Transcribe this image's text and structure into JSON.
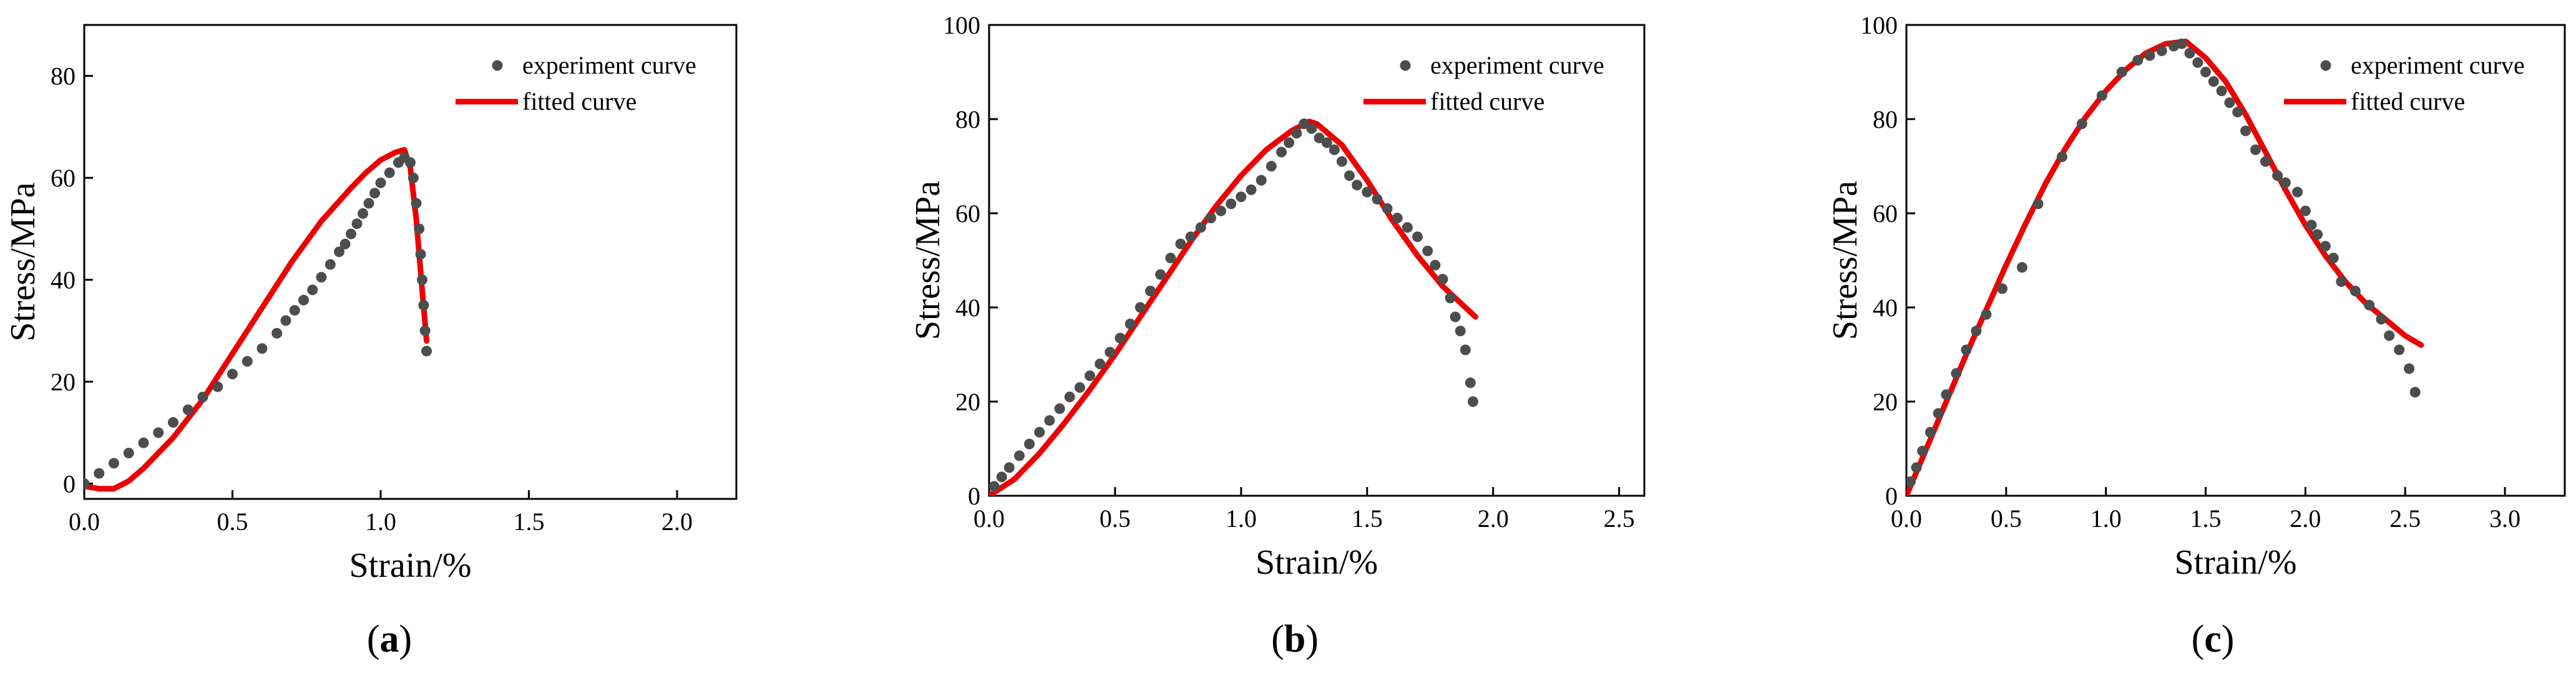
{
  "colors": {
    "experiment": "#4d4d4d",
    "fitted": "#ee0000",
    "axis": "#000000"
  },
  "chart_data": [
    {
      "type": "scatter",
      "panel_label": "a",
      "xlabel": "Strain/%",
      "ylabel": "Stress/MPa",
      "xlim": [
        0,
        2.2
      ],
      "ylim": [
        -3,
        90
      ],
      "xticks": [
        0.0,
        0.5,
        1.0,
        1.5,
        2.0
      ],
      "yticks": [
        0,
        20,
        40,
        60,
        80
      ],
      "xtick_labels": [
        "0.0",
        "0.5",
        "1.0",
        "1.5",
        "2.0"
      ],
      "ytick_labels": [
        "0",
        "20",
        "40",
        "60",
        "80"
      ],
      "legend": {
        "position": "top-right",
        "entries": [
          "experiment curve",
          "fitted curve"
        ]
      },
      "series": [
        {
          "name": "experiment curve",
          "kind": "points",
          "x": [
            0.0,
            0.05,
            0.1,
            0.15,
            0.2,
            0.25,
            0.3,
            0.35,
            0.4,
            0.45,
            0.5,
            0.55,
            0.6,
            0.65,
            0.68,
            0.71,
            0.74,
            0.77,
            0.8,
            0.83,
            0.86,
            0.88,
            0.9,
            0.92,
            0.94,
            0.96,
            0.98,
            1.0,
            1.03,
            1.06,
            1.08,
            1.1,
            1.11,
            1.12,
            1.13,
            1.135,
            1.14,
            1.145,
            1.15,
            1.155
          ],
          "y": [
            0,
            2,
            4,
            6,
            8,
            10,
            12,
            14.5,
            17,
            19,
            21.5,
            24,
            26.5,
            29.5,
            32,
            34,
            36,
            38,
            40.5,
            43,
            45.5,
            47,
            49,
            51,
            53,
            55,
            57,
            59,
            61,
            63,
            64,
            63,
            60,
            55,
            50,
            45,
            40,
            35,
            30,
            26
          ]
        },
        {
          "name": "fitted curve",
          "kind": "line",
          "x": [
            0.0,
            0.05,
            0.1,
            0.15,
            0.2,
            0.3,
            0.4,
            0.5,
            0.6,
            0.7,
            0.8,
            0.9,
            0.95,
            1.0,
            1.05,
            1.08,
            1.1,
            1.12,
            1.14,
            1.155
          ],
          "y": [
            -0.5,
            -1,
            -1,
            0.5,
            3,
            9,
            16.5,
            25.5,
            34.5,
            43.5,
            51.5,
            58,
            61,
            63.5,
            65,
            65.5,
            62,
            52,
            38,
            28
          ]
        }
      ]
    },
    {
      "type": "scatter",
      "panel_label": "b",
      "xlabel": "Strain/%",
      "ylabel": "Stress/MPa",
      "xlim": [
        0,
        2.6
      ],
      "ylim": [
        0,
        100
      ],
      "xticks": [
        0.0,
        0.5,
        1.0,
        1.5,
        2.0,
        2.5
      ],
      "yticks": [
        0,
        20,
        40,
        60,
        80,
        100
      ],
      "xtick_labels": [
        "0.0",
        "0.5",
        "1.0",
        "1.5",
        "2.0",
        "2.5"
      ],
      "ytick_labels": [
        "0",
        "20",
        "40",
        "60",
        "80",
        "100"
      ],
      "legend": {
        "position": "top-right",
        "entries": [
          "experiment curve",
          "fitted curve"
        ]
      },
      "series": [
        {
          "name": "experiment curve",
          "kind": "points",
          "x": [
            0.02,
            0.05,
            0.08,
            0.12,
            0.16,
            0.2,
            0.24,
            0.28,
            0.32,
            0.36,
            0.4,
            0.44,
            0.48,
            0.52,
            0.56,
            0.6,
            0.64,
            0.68,
            0.72,
            0.76,
            0.8,
            0.84,
            0.88,
            0.92,
            0.96,
            1.0,
            1.04,
            1.08,
            1.12,
            1.16,
            1.19,
            1.22,
            1.25,
            1.28,
            1.31,
            1.34,
            1.37,
            1.4,
            1.43,
            1.46,
            1.5,
            1.54,
            1.58,
            1.62,
            1.66,
            1.7,
            1.74,
            1.77,
            1.8,
            1.83,
            1.85,
            1.87,
            1.89,
            1.91,
            1.92
          ],
          "y": [
            2,
            4,
            6,
            8.5,
            11,
            13.5,
            16,
            18.5,
            21,
            23,
            25.5,
            28,
            30.5,
            33.5,
            36.5,
            40,
            43.5,
            47,
            50.5,
            53.5,
            55,
            57,
            59,
            60.5,
            62,
            63.5,
            65,
            67,
            70,
            73,
            75,
            77,
            79,
            78,
            76,
            75,
            73.5,
            71,
            68,
            66,
            64.5,
            63,
            61,
            59,
            57,
            55,
            52,
            49,
            46,
            42,
            38,
            35,
            31,
            24,
            20
          ]
        },
        {
          "name": "fitted curve",
          "kind": "line",
          "x": [
            0.0,
            0.1,
            0.2,
            0.3,
            0.4,
            0.5,
            0.6,
            0.7,
            0.8,
            0.9,
            1.0,
            1.1,
            1.2,
            1.27,
            1.3,
            1.4,
            1.5,
            1.6,
            1.7,
            1.8,
            1.93
          ],
          "y": [
            0,
            3.5,
            9,
            15.5,
            22.5,
            30,
            38,
            46,
            54,
            61.5,
            68,
            73.5,
            77.5,
            79.5,
            79,
            74.5,
            67,
            58.5,
            51,
            44.5,
            38
          ]
        }
      ]
    },
    {
      "type": "scatter",
      "panel_label": "c",
      "xlabel": "Strain/%",
      "ylabel": "Stress/MPa",
      "xlim": [
        0,
        3.3
      ],
      "ylim": [
        0,
        100
      ],
      "xticks": [
        0.0,
        0.5,
        1.0,
        1.5,
        2.0,
        2.5,
        3.0
      ],
      "yticks": [
        0,
        20,
        40,
        60,
        80,
        100
      ],
      "xtick_labels": [
        "0.0",
        "0.5",
        "1.0",
        "1.5",
        "2.0",
        "2.5",
        "3.0"
      ],
      "ytick_labels": [
        "0",
        "20",
        "40",
        "60",
        "80",
        "100"
      ],
      "legend": {
        "position": "top-right",
        "entries": [
          "experiment curve",
          "fitted curve"
        ]
      },
      "series": [
        {
          "name": "experiment curve",
          "kind": "points",
          "x": [
            0.02,
            0.05,
            0.08,
            0.12,
            0.16,
            0.2,
            0.25,
            0.3,
            0.35,
            0.4,
            0.48,
            0.58,
            0.66,
            0.78,
            0.88,
            0.98,
            1.08,
            1.16,
            1.22,
            1.28,
            1.34,
            1.38,
            1.42,
            1.46,
            1.5,
            1.54,
            1.58,
            1.62,
            1.66,
            1.7,
            1.75,
            1.8,
            1.86,
            1.9,
            1.96,
            2.0,
            2.03,
            2.06,
            2.1,
            2.14,
            2.18,
            2.25,
            2.32,
            2.38,
            2.42,
            2.47,
            2.52,
            2.55
          ],
          "y": [
            3,
            6,
            9.5,
            13.5,
            17.5,
            21.5,
            26,
            31,
            35,
            38.5,
            44,
            48.5,
            62,
            72,
            79,
            85,
            90,
            92.5,
            93.5,
            94.5,
            95.5,
            96,
            94,
            92,
            90,
            88,
            86,
            83.5,
            81.5,
            77.5,
            73.5,
            71,
            68,
            66.5,
            64.5,
            60.5,
            57.5,
            55.5,
            53,
            50.5,
            45.5,
            43.5,
            40.5,
            37.5,
            34,
            31,
            27,
            22
          ]
        },
        {
          "name": "fitted curve",
          "kind": "line",
          "x": [
            0.0,
            0.1,
            0.2,
            0.3,
            0.4,
            0.5,
            0.6,
            0.7,
            0.8,
            0.9,
            1.0,
            1.1,
            1.2,
            1.3,
            1.4,
            1.5,
            1.6,
            1.7,
            1.8,
            1.9,
            2.0,
            2.1,
            2.2,
            2.3,
            2.4,
            2.5,
            2.58
          ],
          "y": [
            0,
            10,
            20,
            30,
            39.5,
            49,
            58,
            66.5,
            74,
            80.5,
            86,
            90.5,
            94,
            96,
            96.5,
            93,
            88,
            81,
            73,
            65,
            57.5,
            51,
            45.5,
            41,
            37.5,
            34,
            32
          ]
        }
      ]
    }
  ]
}
